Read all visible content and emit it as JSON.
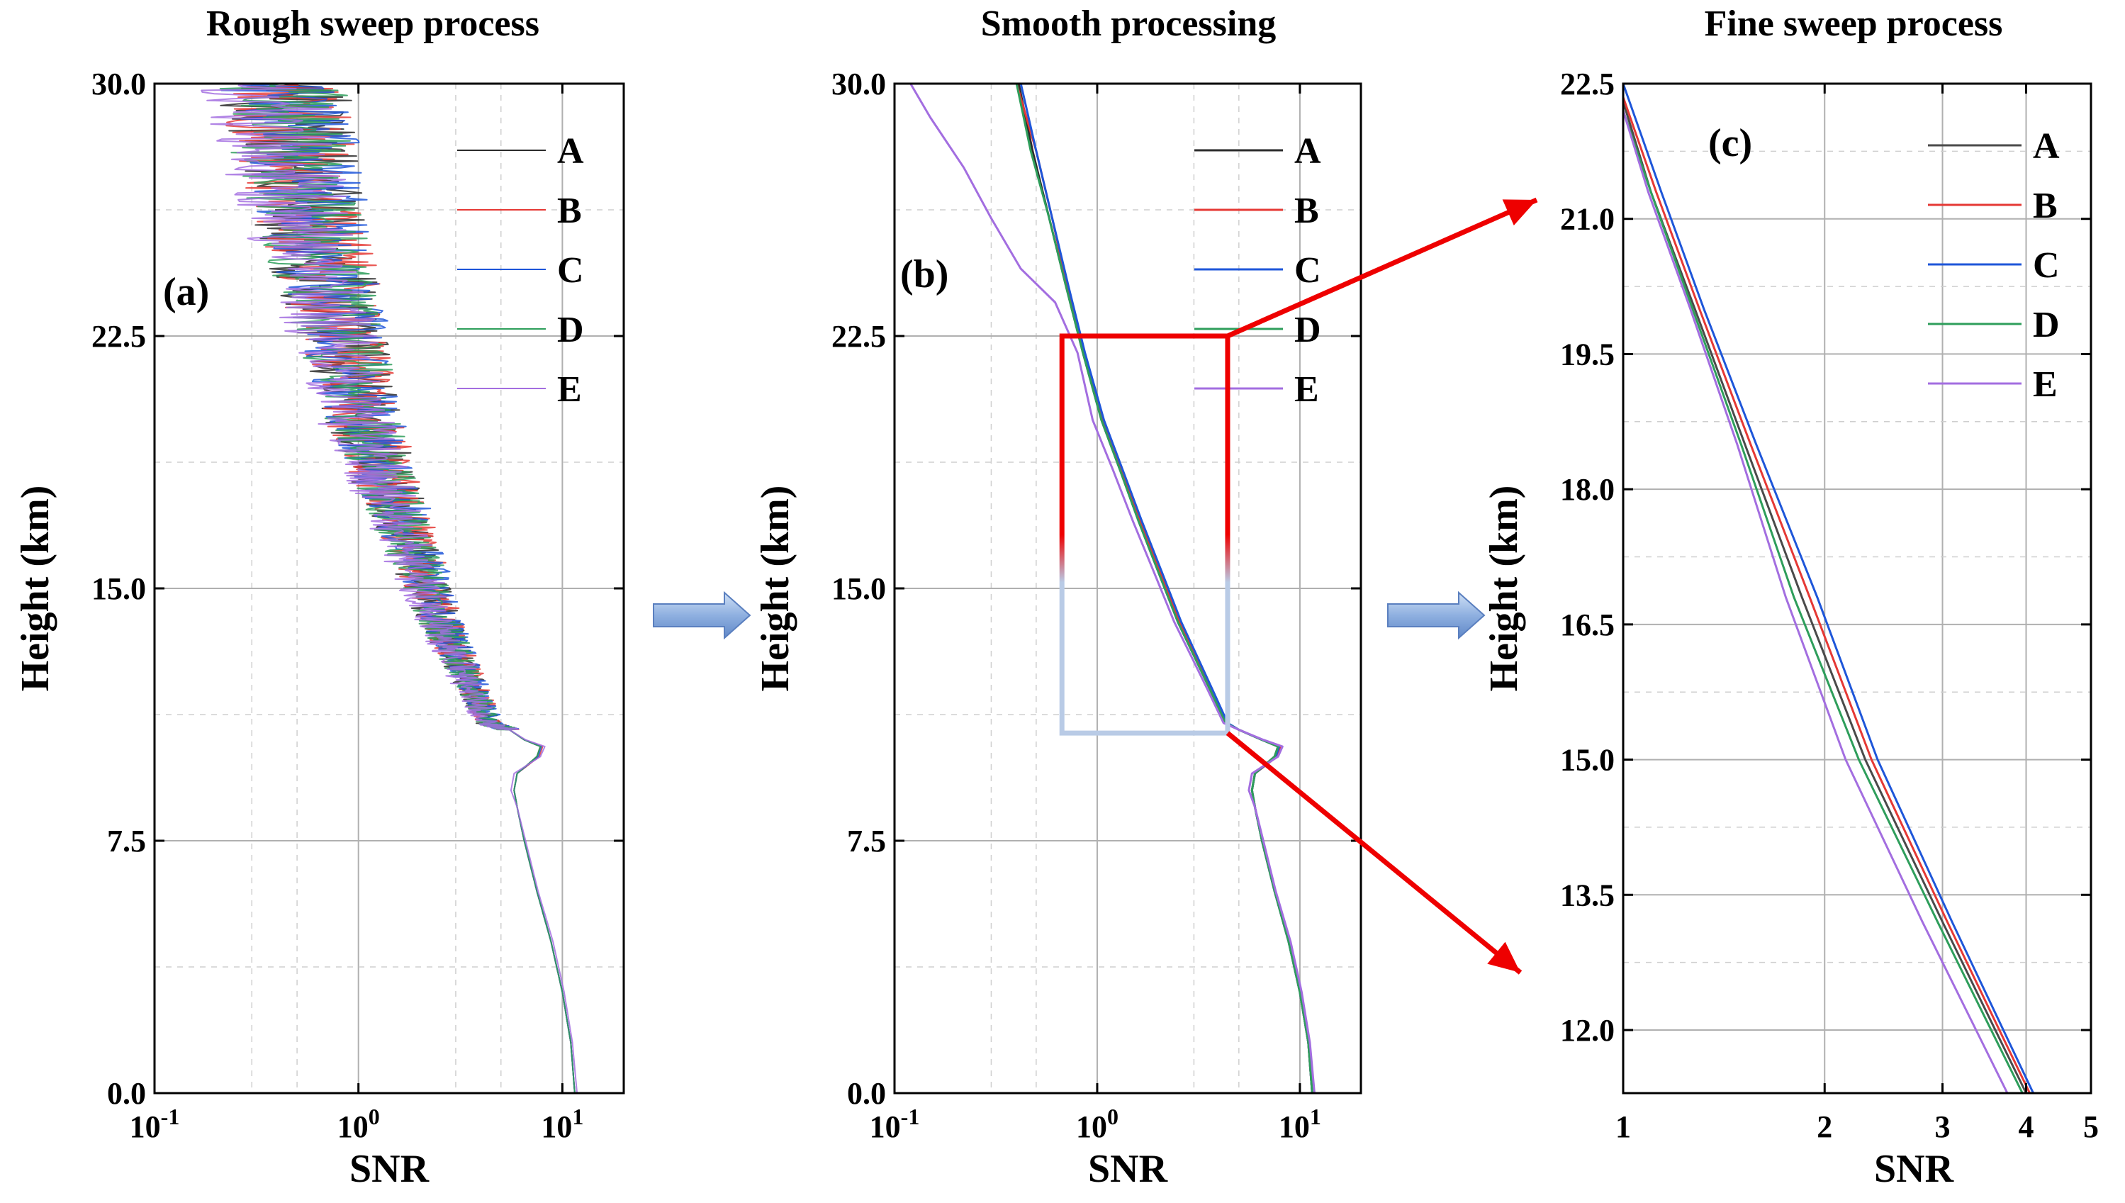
{
  "figure": {
    "flow_arrow_color": "#7a9fd6",
    "zoom_arrow_color": "#ee0000",
    "zoom_box_top_color": "#ee0000",
    "zoom_box_bottom_color": "#b9cbe6"
  },
  "chart_data": [
    {
      "id": "a",
      "type": "line",
      "title": "Rough sweep process",
      "panel_label": "(a)",
      "xlabel": "SNR",
      "ylabel": "Height (km)",
      "xscale": "log",
      "xlim": [
        0.1,
        20
      ],
      "ylim": [
        0,
        30
      ],
      "yticks": [
        "0.0",
        "7.5",
        "15.0",
        "22.5",
        "30.0"
      ],
      "ytick_values": [
        0,
        7.5,
        15,
        22.5,
        30
      ],
      "xticks": [
        {
          "base": "10",
          "exp": "-1",
          "value": 0.1
        },
        {
          "base": "10",
          "exp": "0",
          "value": 1
        },
        {
          "base": "10",
          "exp": "1",
          "value": 10
        }
      ],
      "legend_position": "top-right",
      "noisy": true,
      "series": [
        {
          "name": "A",
          "color": "#2b2b2b",
          "x": [
            11.5,
            11.0,
            10.0,
            8.8,
            7.5,
            6.5,
            6.0,
            5.8,
            6.0,
            7.5,
            7.8,
            6.5,
            5.5,
            4.3,
            3.6,
            3.0,
            2.5,
            2.0,
            1.6,
            1.3,
            1.05,
            0.85,
            0.7,
            0.58,
            0.48,
            0.42
          ],
          "y": [
            0,
            1.5,
            3,
            4.5,
            6,
            7.5,
            8.5,
            9.0,
            9.5,
            10.0,
            10.3,
            10.5,
            10.8,
            11.0,
            12,
            13,
            14,
            15.5,
            17,
            18.5,
            20,
            22,
            24,
            26,
            28,
            30
          ]
        },
        {
          "name": "B",
          "color": "#e53935",
          "x": [
            11.5,
            11.0,
            10.0,
            8.8,
            7.5,
            6.5,
            6.0,
            5.8,
            6.0,
            7.7,
            8.0,
            6.5,
            5.5,
            4.4,
            3.7,
            3.05,
            2.55,
            2.05,
            1.65,
            1.33,
            1.07,
            0.87,
            0.72,
            0.6,
            0.49,
            0.43
          ],
          "y": [
            0,
            1.5,
            3,
            4.5,
            6,
            7.5,
            8.5,
            9.0,
            9.5,
            10.0,
            10.3,
            10.5,
            10.8,
            11.0,
            12,
            13,
            14,
            15.5,
            17,
            18.5,
            20,
            22,
            24,
            26,
            28,
            30
          ]
        },
        {
          "name": "C",
          "color": "#1e56d9",
          "x": [
            11.5,
            11.0,
            10.0,
            8.8,
            7.5,
            6.5,
            6.0,
            5.8,
            6.0,
            7.6,
            7.9,
            6.5,
            5.5,
            4.45,
            3.75,
            3.1,
            2.6,
            2.1,
            1.68,
            1.35,
            1.08,
            0.88,
            0.73,
            0.61,
            0.5,
            0.44
          ],
          "y": [
            0,
            1.5,
            3,
            4.5,
            6,
            7.5,
            8.5,
            9.0,
            9.5,
            10.0,
            10.3,
            10.5,
            10.8,
            11.0,
            12,
            13,
            14,
            15.5,
            17,
            18.5,
            20,
            22,
            24,
            26,
            28,
            30
          ]
        },
        {
          "name": "D",
          "color": "#2e9e5b",
          "x": [
            11.5,
            11.0,
            10.0,
            8.8,
            7.5,
            6.5,
            6.0,
            5.8,
            6.0,
            7.5,
            7.8,
            6.5,
            5.5,
            4.3,
            3.6,
            3.0,
            2.5,
            2.0,
            1.6,
            1.3,
            1.05,
            0.85,
            0.7,
            0.58,
            0.48,
            0.42
          ],
          "y": [
            0,
            1.5,
            3,
            4.5,
            6,
            7.5,
            8.5,
            9.0,
            9.5,
            10.0,
            10.3,
            10.5,
            10.8,
            11.0,
            12,
            13,
            14,
            15.5,
            17,
            18.5,
            20,
            22,
            24,
            26,
            28,
            30
          ]
        },
        {
          "name": "E",
          "color": "#a36ee0",
          "x": [
            11.8,
            11.2,
            10.2,
            9.0,
            7.6,
            6.6,
            6.0,
            5.6,
            5.8,
            7.8,
            8.2,
            6.6,
            5.5,
            4.2,
            3.5,
            2.9,
            2.4,
            1.9,
            1.5,
            1.2,
            0.97,
            0.78,
            0.63,
            0.5,
            0.4,
            0.32
          ],
          "y": [
            0,
            1.5,
            3,
            4.5,
            6,
            7.5,
            8.5,
            9.0,
            9.5,
            10.0,
            10.3,
            10.5,
            10.8,
            11.0,
            12,
            13,
            14,
            15.5,
            17,
            18.5,
            20,
            22,
            24,
            26,
            28,
            30
          ]
        }
      ]
    },
    {
      "id": "b",
      "type": "line",
      "title": "Smooth processing",
      "panel_label": "(b)",
      "xlabel": "SNR",
      "ylabel": "Height (km)",
      "xscale": "log",
      "xlim": [
        0.1,
        20
      ],
      "ylim": [
        0,
        30
      ],
      "yticks": [
        "0.0",
        "7.5",
        "15.0",
        "22.5",
        "30.0"
      ],
      "ytick_values": [
        0,
        7.5,
        15,
        22.5,
        30
      ],
      "xticks": [
        {
          "base": "10",
          "exp": "-1",
          "value": 0.1
        },
        {
          "base": "10",
          "exp": "0",
          "value": 1
        },
        {
          "base": "10",
          "exp": "1",
          "value": 10
        }
      ],
      "legend_position": "top-right",
      "zoom_box": {
        "x": [
          0.67,
          4.4
        ],
        "y": [
          10.7,
          22.5
        ]
      },
      "series": [
        {
          "name": "A",
          "color": "#2b2b2b",
          "x": [
            11.5,
            11.0,
            10.0,
            8.8,
            7.5,
            6.5,
            6.0,
            5.8,
            6.0,
            7.5,
            7.8,
            6.5,
            5.0,
            4.3,
            3.6,
            3.0,
            2.5,
            2.0,
            1.6,
            1.3,
            1.05,
            0.85,
            0.7,
            0.58,
            0.48,
            0.41
          ],
          "y": [
            0,
            1.5,
            3,
            4.5,
            6,
            7.5,
            8.5,
            9.0,
            9.5,
            10.0,
            10.3,
            10.5,
            10.8,
            11.0,
            12,
            13,
            14,
            15.5,
            17,
            18.5,
            20,
            22,
            24,
            26,
            28,
            30
          ]
        },
        {
          "name": "B",
          "color": "#e53935",
          "x": [
            11.5,
            11.0,
            10.0,
            8.8,
            7.5,
            6.5,
            6.0,
            5.8,
            6.0,
            7.7,
            8.0,
            6.5,
            5.0,
            4.35,
            3.65,
            3.05,
            2.55,
            2.05,
            1.63,
            1.32,
            1.07,
            0.86,
            0.71,
            0.6,
            0.5,
            0.4
          ],
          "y": [
            0,
            1.5,
            3,
            4.5,
            6,
            7.5,
            8.5,
            9.0,
            9.5,
            10.0,
            10.3,
            10.5,
            10.8,
            11.0,
            12,
            13,
            14,
            15.5,
            17,
            18.5,
            20,
            22,
            24,
            26,
            28,
            30
          ]
        },
        {
          "name": "C",
          "color": "#1e56d9",
          "x": [
            11.5,
            11.0,
            10.0,
            8.8,
            7.5,
            6.5,
            6.0,
            5.8,
            6.0,
            7.6,
            7.9,
            6.5,
            5.0,
            4.4,
            3.7,
            3.1,
            2.6,
            2.08,
            1.66,
            1.34,
            1.08,
            0.87,
            0.72,
            0.6,
            0.5,
            0.42
          ],
          "y": [
            0,
            1.5,
            3,
            4.5,
            6,
            7.5,
            8.5,
            9.0,
            9.5,
            10.0,
            10.3,
            10.5,
            10.8,
            11.0,
            12,
            13,
            14,
            15.5,
            17,
            18.5,
            20,
            22,
            24,
            26,
            28,
            30
          ]
        },
        {
          "name": "D",
          "color": "#2e9e5b",
          "x": [
            11.5,
            11.0,
            10.0,
            8.8,
            7.5,
            6.5,
            6.0,
            5.8,
            6.0,
            7.5,
            7.8,
            6.5,
            5.0,
            4.3,
            3.6,
            3.0,
            2.5,
            2.0,
            1.6,
            1.3,
            1.05,
            0.85,
            0.7,
            0.58,
            0.47,
            0.4
          ],
          "y": [
            0,
            1.5,
            3,
            4.5,
            6,
            7.5,
            8.5,
            9.0,
            9.5,
            10.0,
            10.3,
            10.5,
            10.8,
            11.0,
            12,
            13,
            14,
            15.5,
            17,
            18.5,
            20,
            22,
            24,
            26,
            28,
            30
          ]
        },
        {
          "name": "E",
          "color": "#a36ee0",
          "x": [
            11.8,
            11.2,
            10.2,
            9.0,
            7.6,
            6.6,
            6.0,
            5.6,
            5.8,
            7.8,
            8.2,
            6.6,
            5.0,
            4.2,
            3.5,
            2.9,
            2.4,
            1.9,
            1.5,
            1.2,
            0.95,
            0.8,
            0.62,
            0.42,
            0.3,
            0.22,
            0.15,
            0.12
          ],
          "y": [
            0,
            1.5,
            3,
            4.5,
            6,
            7.5,
            8.5,
            9.0,
            9.5,
            10.0,
            10.3,
            10.5,
            10.8,
            11.0,
            12,
            13,
            14,
            15.5,
            17,
            18.5,
            20,
            22,
            23.5,
            24.5,
            26,
            27.5,
            29,
            30
          ]
        }
      ]
    },
    {
      "id": "c",
      "type": "line",
      "title": "Fine sweep process",
      "panel_label": "(c)",
      "xlabel": "SNR",
      "ylabel": "Height (km)",
      "xscale": "log",
      "xlim": [
        1,
        5
      ],
      "ylim": [
        11.3,
        22.5
      ],
      "yticks": [
        "12.0",
        "13.5",
        "15.0",
        "16.5",
        "18.0",
        "19.5",
        "21.0",
        "22.5"
      ],
      "ytick_values": [
        12,
        13.5,
        15,
        16.5,
        18,
        19.5,
        21,
        22.5
      ],
      "xticks": [
        {
          "base": "1",
          "exp": "",
          "value": 1
        },
        {
          "base": "2",
          "exp": "",
          "value": 2
        },
        {
          "base": "3",
          "exp": "",
          "value": 3
        },
        {
          "base": "4",
          "exp": "",
          "value": 4
        },
        {
          "base": "5",
          "exp": "",
          "value": 5
        }
      ],
      "legend_position": "top-right",
      "series": [
        {
          "name": "A",
          "color": "#4a4a4a",
          "x": [
            4.0,
            3.0,
            2.3,
            1.85,
            1.52,
            1.28,
            1.1,
            1.0
          ],
          "y": [
            11.3,
            13.2,
            15.0,
            16.8,
            18.5,
            20.0,
            21.3,
            22.3
          ]
        },
        {
          "name": "B",
          "color": "#e53935",
          "x": [
            4.05,
            3.05,
            2.35,
            1.9,
            1.55,
            1.3,
            1.12,
            1.0
          ],
          "y": [
            11.3,
            13.2,
            15.0,
            16.8,
            18.5,
            20.0,
            21.3,
            22.35
          ]
        },
        {
          "name": "C",
          "color": "#1e56d9",
          "x": [
            4.1,
            3.1,
            2.4,
            1.95,
            1.58,
            1.32,
            1.14,
            1.0
          ],
          "y": [
            11.3,
            13.2,
            15.0,
            16.8,
            18.5,
            20.0,
            21.3,
            22.5
          ]
        },
        {
          "name": "D",
          "color": "#2e9e5b",
          "x": [
            3.95,
            2.95,
            2.25,
            1.8,
            1.5,
            1.27,
            1.1,
            1.0
          ],
          "y": [
            11.3,
            13.2,
            15.0,
            16.8,
            18.5,
            20.0,
            21.3,
            22.2
          ]
        },
        {
          "name": "E",
          "color": "#a36ee0",
          "x": [
            3.75,
            2.8,
            2.15,
            1.75,
            1.48,
            1.26,
            1.09,
            1.0
          ],
          "y": [
            11.3,
            13.2,
            15.0,
            16.8,
            18.5,
            20.0,
            21.3,
            22.2
          ]
        }
      ]
    }
  ]
}
